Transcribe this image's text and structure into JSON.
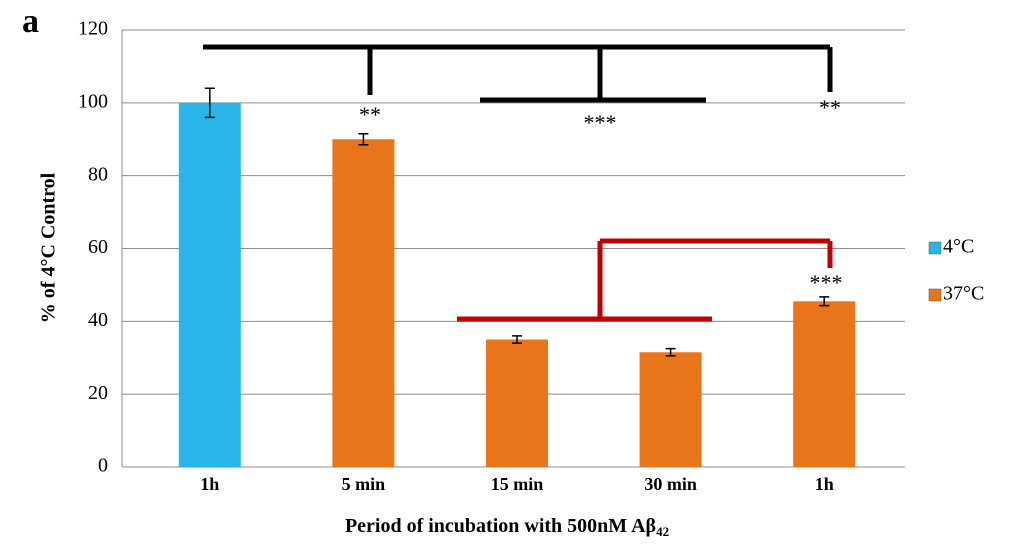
{
  "chart_data": {
    "type": "bar",
    "panel_label": "a",
    "categories": [
      "1h",
      "5 min",
      "15 min",
      "30 min",
      "1h"
    ],
    "series": [
      {
        "name": "4°C",
        "color": "#29b5e8",
        "values": [
          100,
          null,
          null,
          null,
          null
        ],
        "errors": [
          4,
          null,
          null,
          null,
          null
        ]
      },
      {
        "name": "37°C",
        "color": "#e8751a",
        "values": [
          null,
          90,
          35,
          31.5,
          45.5
        ],
        "errors": [
          null,
          1.5,
          1,
          1,
          1.2
        ]
      }
    ],
    "ylim": [
      0,
      120
    ],
    "yticks": [
      0,
      20,
      40,
      60,
      80,
      100,
      120
    ],
    "grid": true,
    "y_label": "% of 4°C Control",
    "x_label": "Period of incubation with 500nM Aβ",
    "x_label_subscript": "42",
    "annotations": [
      {
        "text": "**",
        "color": "#000000"
      },
      {
        "text": "***",
        "color": "#000000"
      },
      {
        "text": "**",
        "color": "#000000"
      },
      {
        "text": "***",
        "color": "#c00000"
      }
    ],
    "legend": "right"
  }
}
